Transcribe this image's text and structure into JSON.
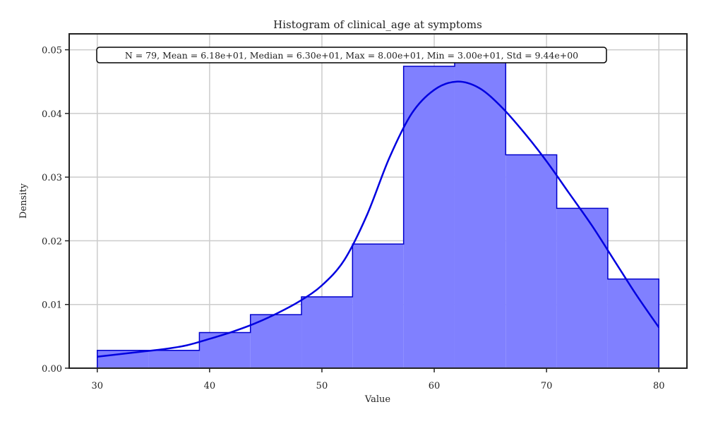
{
  "chart_data": {
    "type": "histogram",
    "title": "Histogram of clinical_age at symptoms",
    "xlabel": "Value",
    "ylabel": "Density",
    "xlim": [
      27.5,
      82.5
    ],
    "ylim": [
      0,
      0.0525
    ],
    "xticks": [
      30,
      40,
      50,
      60,
      70,
      80
    ],
    "yticks": [
      0.0,
      0.01,
      0.02,
      0.03,
      0.04,
      0.05
    ],
    "ytick_labels": [
      "0.00",
      "0.01",
      "0.02",
      "0.03",
      "0.04",
      "0.05"
    ],
    "grid": true,
    "bins": {
      "edges": [
        30.0,
        34.545,
        39.091,
        43.636,
        48.182,
        52.727,
        57.273,
        61.818,
        66.364,
        70.909,
        75.455,
        80.0
      ],
      "density": [
        0.0028,
        0.0028,
        0.0056,
        0.0084,
        0.0112,
        0.0195,
        0.0474,
        0.0487,
        0.0335,
        0.0251,
        0.014
      ]
    },
    "kde": {
      "x": [
        30,
        32,
        34,
        36,
        38,
        40,
        42,
        44,
        46,
        48,
        50,
        52,
        54,
        56,
        58,
        60,
        62,
        64,
        66,
        68,
        70,
        72,
        74,
        76,
        78,
        80
      ],
      "y": [
        0.0018,
        0.0022,
        0.0026,
        0.003,
        0.0036,
        0.0046,
        0.0057,
        0.007,
        0.0086,
        0.0105,
        0.013,
        0.017,
        0.024,
        0.033,
        0.04,
        0.0437,
        0.045,
        0.044,
        0.041,
        0.037,
        0.0325,
        0.0275,
        0.0225,
        0.017,
        0.0115,
        0.0064
      ]
    },
    "annotation": "N = 79, Mean = 6.18e+01, Median = 6.30e+01, Max = 8.00e+01, Min = 3.00e+01, Std = 9.44e+00",
    "colors": {
      "bar_fill": "#8080ff",
      "bar_edge": "#0000cc",
      "kde_line": "#0000e0",
      "grid": "#cccccc",
      "axes": "#222222"
    }
  }
}
